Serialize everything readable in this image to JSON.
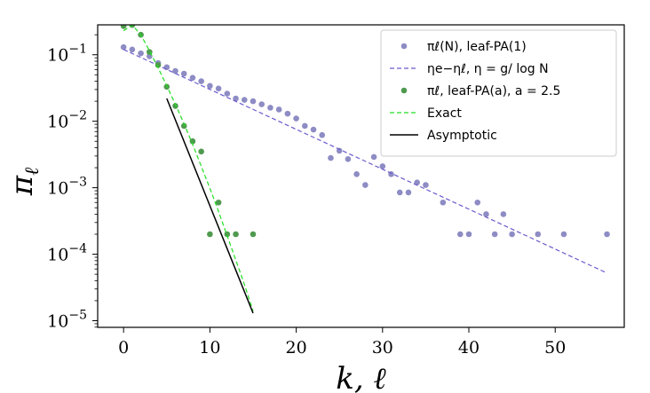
{
  "chart_data": {
    "type": "scatter",
    "xlabel": "k, ℓ",
    "ylabel": "π_ℓ",
    "ylabel_base": "π",
    "ylabel_sub": "ℓ",
    "xlim": [
      -3,
      58
    ],
    "ylim_log10": [
      -5.1,
      -0.55
    ],
    "y_scale": "log",
    "x_ticks": [
      0,
      10,
      20,
      30,
      40,
      50
    ],
    "x_tick_labels": [
      "0",
      "10",
      "20",
      "30",
      "40",
      "50"
    ],
    "y_ticks_log10": [
      -1,
      -2,
      -3,
      -4,
      -5
    ],
    "y_tick_labels": [
      {
        "base": "10",
        "exp": "−1"
      },
      {
        "base": "10",
        "exp": "−2"
      },
      {
        "base": "10",
        "exp": "−3"
      },
      {
        "base": "10",
        "exp": "−4"
      },
      {
        "base": "10",
        "exp": "−5"
      }
    ],
    "legend_position": "top-right",
    "series": [
      {
        "name": "π_ℓ(N), leaf-PA(1)",
        "legend_label": "πℓ(N), leaf-PA(1)",
        "kind": "scatter",
        "color": "#8e8cc4",
        "points": [
          [
            0,
            0.13
          ],
          [
            1,
            0.12
          ],
          [
            2,
            0.105
          ],
          [
            3,
            0.095
          ],
          [
            4,
            0.075
          ],
          [
            5,
            0.065
          ],
          [
            6,
            0.057
          ],
          [
            7,
            0.052
          ],
          [
            8,
            0.045
          ],
          [
            9,
            0.04
          ],
          [
            10,
            0.034
          ],
          [
            11,
            0.031
          ],
          [
            12,
            0.026
          ],
          [
            13,
            0.022
          ],
          [
            14,
            0.021
          ],
          [
            15,
            0.02
          ],
          [
            16,
            0.018
          ],
          [
            17,
            0.016
          ],
          [
            18,
            0.015
          ],
          [
            19,
            0.013
          ],
          [
            20,
            0.011
          ],
          [
            21,
            0.0085
          ],
          [
            22,
            0.0075
          ],
          [
            23,
            0.0062
          ],
          [
            24,
            0.0028
          ],
          [
            25,
            0.0036
          ],
          [
            26,
            0.0027
          ],
          [
            27,
            0.0016
          ],
          [
            28,
            0.0011
          ],
          [
            29,
            0.0029
          ],
          [
            30,
            0.0021
          ],
          [
            31,
            0.0016
          ],
          [
            32,
            0.00085
          ],
          [
            33,
            0.00085
          ],
          [
            34,
            0.0012
          ],
          [
            35,
            0.0011
          ],
          [
            37,
            0.0006
          ],
          [
            39,
            0.0002
          ],
          [
            40,
            0.0002
          ],
          [
            41,
            0.0006
          ],
          [
            42,
            0.0004
          ],
          [
            43,
            0.0002
          ],
          [
            44,
            0.0004
          ],
          [
            45,
            0.0002
          ],
          [
            48,
            0.0002
          ],
          [
            51,
            0.0002
          ],
          [
            56,
            0.0002
          ]
        ]
      },
      {
        "name": "ηe^{−ηℓ}, η = g/log N",
        "legend_label": "ηe−ηℓ, η = g/ log N",
        "kind": "dashed-line",
        "color": "#6a5acd",
        "points": [
          [
            0,
            0.12
          ],
          [
            56,
            5.2e-05
          ]
        ]
      },
      {
        "name": "π_ℓ, leaf-PA(a), a = 2.5",
        "legend_label": "πℓ, leaf-PA(a), a = 2.5",
        "kind": "scatter",
        "color": "#4f9a4f",
        "points": [
          [
            0,
            0.27
          ],
          [
            1,
            0.28
          ],
          [
            2,
            0.2
          ],
          [
            3,
            0.11
          ],
          [
            4,
            0.07
          ],
          [
            5,
            0.033
          ],
          [
            6,
            0.017
          ],
          [
            7,
            0.0085
          ],
          [
            8,
            0.005
          ],
          [
            9,
            0.0035
          ],
          [
            10,
            0.0002
          ],
          [
            11,
            0.0006
          ],
          [
            12,
            0.0002
          ],
          [
            13,
            0.0002
          ],
          [
            15,
            0.0002
          ]
        ]
      },
      {
        "name": "Exact",
        "legend_label": "Exact",
        "kind": "dashed-line",
        "color": "#22dd22",
        "points": [
          [
            0,
            0.23
          ],
          [
            1,
            0.28
          ],
          [
            2,
            0.2
          ],
          [
            3,
            0.115
          ],
          [
            4,
            0.064
          ],
          [
            5,
            0.034
          ],
          [
            6,
            0.018
          ],
          [
            7,
            0.0092
          ],
          [
            8,
            0.0045
          ],
          [
            9,
            0.0021
          ],
          [
            10,
            0.00098
          ],
          [
            11,
            0.00044
          ],
          [
            12,
            0.00019
          ],
          [
            13,
            8.2e-05
          ],
          [
            14,
            3.5e-05
          ],
          [
            15,
            1.4e-05
          ]
        ]
      },
      {
        "name": "Asymptotic",
        "legend_label": "Asymptotic",
        "kind": "solid-line",
        "color": "#000000",
        "points": [
          [
            5,
            0.022
          ],
          [
            15,
            1.3e-05
          ]
        ]
      }
    ]
  }
}
